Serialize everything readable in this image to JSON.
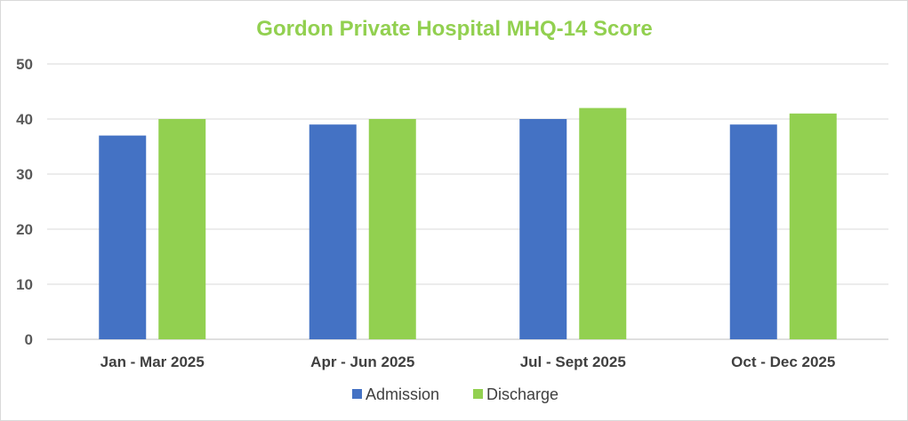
{
  "colors": {
    "title": "#92d050",
    "admission": "#4472c4",
    "discharge": "#92d050",
    "grid": "#d9d9d9",
    "axis": "#bfbfbf"
  },
  "chart_data": {
    "type": "bar",
    "title": "Gordon Private Hospital MHQ-14 Score",
    "categories": [
      "Jan - Mar 2025",
      "Apr - Jun 2025",
      "Jul - Sept 2025",
      "Oct - Dec 2025"
    ],
    "series": [
      {
        "name": "Admission",
        "values": [
          37,
          39,
          40,
          39
        ]
      },
      {
        "name": "Discharge",
        "values": [
          40,
          40,
          42,
          41
        ]
      }
    ],
    "ylim": [
      0,
      50
    ],
    "yticks": [
      "0",
      "10",
      "20",
      "30",
      "40",
      "50"
    ],
    "grid": true,
    "legend_position": "bottom"
  }
}
